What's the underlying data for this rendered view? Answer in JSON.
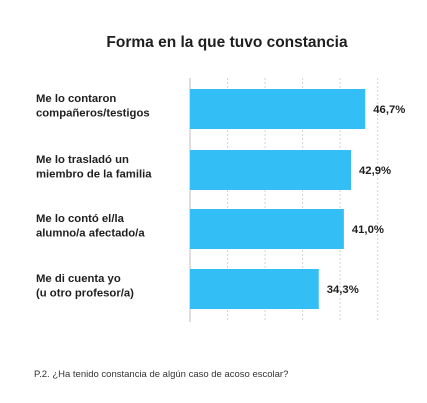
{
  "chart_data": {
    "type": "bar",
    "orientation": "horizontal",
    "title": "Forma en la que tuvo constancia",
    "categories": [
      [
        "Me lo contaron",
        "compañeros/testigos"
      ],
      [
        "Me lo trasladó un",
        "miembro de la familia"
      ],
      [
        "Me lo contó el/la",
        "alumno/a afectado/a"
      ],
      [
        "Me di cuenta yo",
        "(u otro profesor/a)"
      ]
    ],
    "values": [
      46.7,
      42.9,
      41.0,
      34.3
    ],
    "value_labels": [
      "46,7%",
      "42,9%",
      "41,0%",
      "34,3%"
    ],
    "xlim": [
      0,
      50
    ],
    "grid": true,
    "bar_color": "#33BEF5",
    "xlabel": "",
    "ylabel": ""
  },
  "footnote": "P.2. ¿Ha tenido constancia de algún caso de acoso escolar?"
}
